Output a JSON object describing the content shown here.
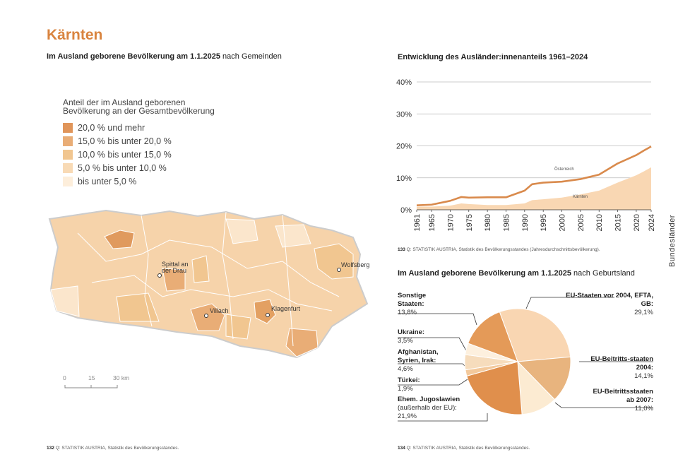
{
  "header": {
    "title": "Kärnten"
  },
  "map": {
    "title_bold": "Im Ausland geborene Bevölkerung am 1.1.2025",
    "title_rest": "nach Gemeinden",
    "legend": {
      "title": "Anteil der im Ausland geborenen Bevölkerung an der Gesamtbevölkerung",
      "items": [
        {
          "label": "20,0 % und mehr",
          "color": "#e0955a"
        },
        {
          "label": "15,0 % bis unter 20,0 %",
          "color": "#e9ad76"
        },
        {
          "label": "10,0 % bis unter 15,0 %",
          "color": "#f1c690"
        },
        {
          "label": "5,0 % bis unter 10,0 %",
          "color": "#f8dab5"
        },
        {
          "label": "bis unter 5,0 %",
          "color": "#fdeedb"
        }
      ]
    },
    "cities": [
      "Spittal an der Drau",
      "Villach",
      "Klagenfurt",
      "Wolfsberg"
    ],
    "scale": [
      "0",
      "15",
      "30 km"
    ],
    "footer": {
      "page": "132",
      "source": "Q: STATISTIK AUSTRIA, Statistik des Bevölkerungsstandes."
    }
  },
  "chart_data": [
    {
      "type": "line",
      "title": "Entwicklung des Ausländer:innenanteils 1961–2024",
      "x": [
        1961,
        1965,
        1970,
        1973,
        1975,
        1980,
        1985,
        1990,
        1992,
        1995,
        2000,
        2005,
        2010,
        2015,
        2020,
        2022,
        2024
      ],
      "series": [
        {
          "name": "Österreich",
          "color": "#d98a4c",
          "style": "line",
          "values": [
            1.4,
            1.6,
            2.8,
            4.0,
            3.8,
            3.9,
            3.9,
            6.0,
            8.0,
            8.5,
            8.8,
            9.6,
            11.0,
            14.5,
            17.1,
            18.5,
            19.8
          ]
        },
        {
          "name": "Kärnten",
          "color": "#f9d7b3",
          "style": "area",
          "values": [
            1.0,
            1.0,
            1.3,
            2.0,
            1.8,
            1.5,
            1.5,
            2.0,
            3.0,
            3.3,
            3.8,
            4.8,
            6.0,
            8.5,
            10.8,
            12.0,
            13.3
          ]
        }
      ],
      "xlim": [
        1961,
        2024
      ],
      "xticks": [
        1961,
        1965,
        1970,
        1975,
        1980,
        1985,
        1990,
        1995,
        2000,
        2005,
        2010,
        2015,
        2020,
        2024
      ],
      "ylim": [
        0,
        40
      ],
      "yticks": [
        {
          "value": 0,
          "label": "0%"
        },
        {
          "value": 10,
          "label": "10%"
        },
        {
          "value": 20,
          "label": "20%"
        },
        {
          "value": 30,
          "label": "30%"
        },
        {
          "value": 40,
          "label": "40%"
        }
      ],
      "grid": true,
      "footer": {
        "page": "133",
        "source": "Q: STATISTIK AUSTRIA, Statistik des Bevölkerungsstandes (Jahresdurchschnittsbevölkerung)."
      }
    },
    {
      "type": "pie",
      "title": "Im Ausland geborene Bevölkerung am 1.1.2025",
      "title_rest": "nach Geburtsland",
      "categories": [
        "EU-Staaten vor 2004, EFTA, GB:",
        "EU-Beitritts-staaten 2004:",
        "EU-Beitrittsstaaten ab 2007:",
        "Ehem. Jugoslawien",
        "Türkei:",
        "Afghanistan, Syrien, Irak:",
        "Ukraine:",
        "Sonstige Staaten:"
      ],
      "category_notes": [
        null,
        null,
        null,
        "(außerhalb der EU):",
        null,
        null,
        null,
        null
      ],
      "values": [
        29.1,
        14.1,
        11.0,
        21.9,
        1.9,
        4.6,
        3.5,
        13.8
      ],
      "value_labels": [
        "29,1%",
        "14,1%",
        "11,0%",
        "21,9%",
        "1,9%",
        "4,6%",
        "3,5%",
        "13,8%"
      ],
      "colors": [
        "#f9d6b2",
        "#e8b47e",
        "#fcebd2",
        "#e08f4c",
        "#f3c99c",
        "#f6dcbc",
        "#fdf0de",
        "#e49a58"
      ],
      "footer": {
        "page": "134",
        "source": "Q: STATISTIK AUSTRIA, Statistik des Bevölkerungsstandes."
      }
    }
  ],
  "sidebar": "Bundesländer"
}
